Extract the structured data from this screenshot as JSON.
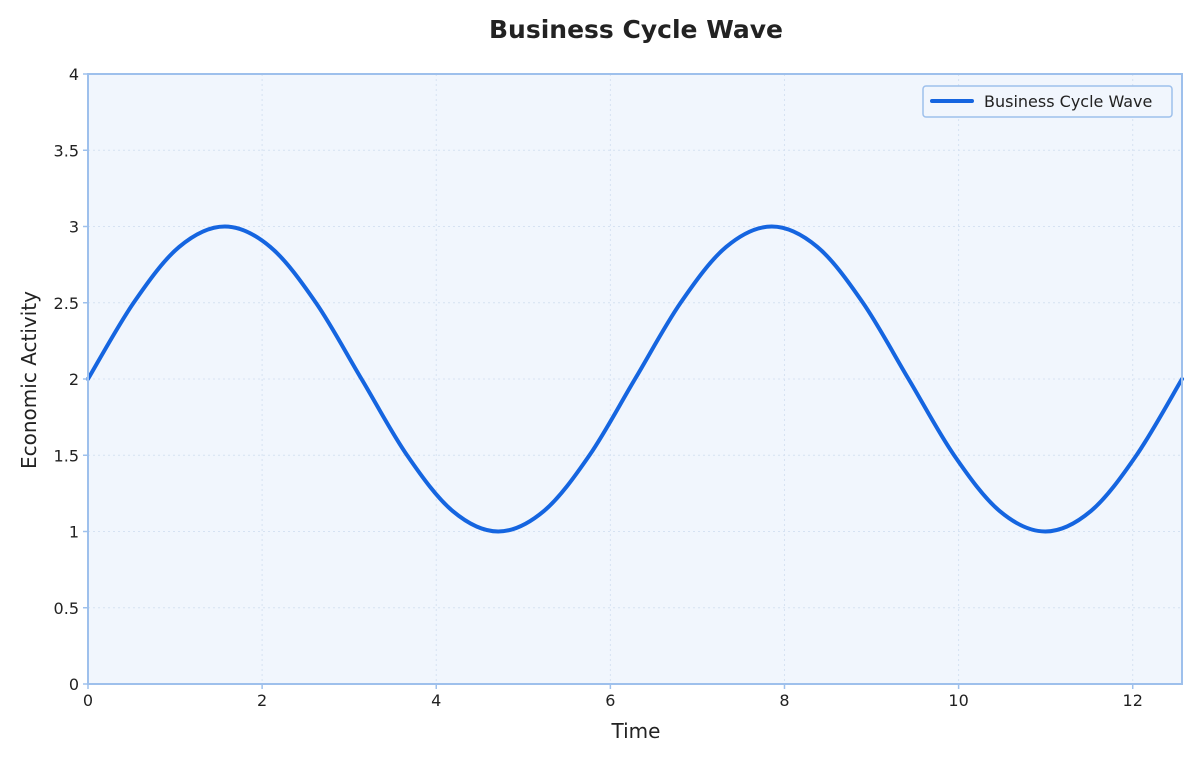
{
  "chart_data": {
    "type": "line",
    "title": "Business Cycle Wave",
    "xlabel": "Time",
    "ylabel": "Economic Activity",
    "xlim": [
      0,
      12.566
    ],
    "ylim": [
      0,
      4
    ],
    "x_ticks": [
      0,
      2,
      4,
      6,
      8,
      10,
      12
    ],
    "y_ticks": [
      0,
      0.5,
      1,
      1.5,
      2,
      2.5,
      3,
      3.5,
      4
    ],
    "x_tick_labels": [
      "0",
      "2",
      "4",
      "6",
      "8",
      "10",
      "12"
    ],
    "y_tick_labels": [
      "0",
      "0.5",
      "1",
      "1.5",
      "2",
      "2.5",
      "3",
      "3.5",
      "4"
    ],
    "grid": true,
    "legend_position": "top-right",
    "series": [
      {
        "name": "Business Cycle Wave",
        "color": "#1565e0",
        "x": [
          0,
          0.524,
          1.047,
          1.571,
          2.094,
          2.618,
          3.142,
          3.665,
          4.189,
          4.712,
          5.236,
          5.76,
          6.283,
          6.807,
          7.33,
          7.854,
          8.378,
          8.901,
          9.425,
          9.948,
          10.472,
          10.996,
          11.519,
          12.043,
          12.566
        ],
        "y": [
          2.0,
          2.5,
          2.866,
          3.0,
          2.866,
          2.5,
          2.0,
          1.5,
          1.134,
          1.0,
          1.134,
          1.5,
          2.0,
          2.5,
          2.866,
          3.0,
          2.866,
          2.5,
          2.0,
          1.5,
          1.134,
          1.0,
          1.134,
          1.5,
          2.0
        ]
      }
    ]
  },
  "colors": {
    "plot_background": "#f1f6fd",
    "plot_border": "#9ec0ec",
    "legend_border": "#9ec0ec",
    "line": "#1565e0"
  }
}
